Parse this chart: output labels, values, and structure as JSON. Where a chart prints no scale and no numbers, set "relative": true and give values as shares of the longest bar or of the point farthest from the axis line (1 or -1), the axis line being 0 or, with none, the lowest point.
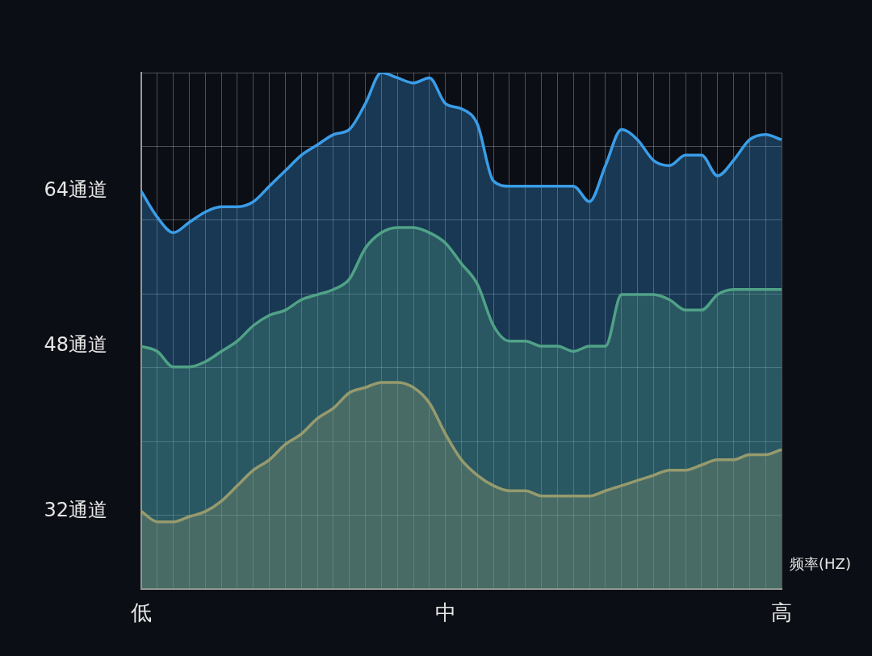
{
  "chart_data": {
    "type": "area",
    "relative": true,
    "xlabel": "频率(HZ)",
    "grid": true,
    "legend": false,
    "categories": [
      "低",
      null,
      null,
      null,
      null,
      null,
      null,
      null,
      null,
      null,
      null,
      null,
      null,
      null,
      null,
      null,
      null,
      null,
      null,
      "中",
      null,
      null,
      null,
      null,
      null,
      null,
      null,
      null,
      null,
      null,
      null,
      null,
      null,
      null,
      null,
      null,
      null,
      null,
      null,
      null,
      "高"
    ],
    "series": [
      {
        "name": "64通道",
        "color": "#3a9de8",
        "values": [
          0.77,
          0.72,
          0.69,
          0.71,
          0.73,
          0.74,
          0.74,
          0.75,
          0.78,
          0.81,
          0.84,
          0.86,
          0.88,
          0.89,
          0.94,
          1.0,
          0.99,
          0.98,
          0.99,
          0.94,
          0.93,
          0.9,
          0.79,
          0.78,
          0.78,
          0.78,
          0.78,
          0.78,
          0.75,
          0.82,
          0.89,
          0.87,
          0.83,
          0.82,
          0.84,
          0.84,
          0.8,
          0.83,
          0.87,
          0.88,
          0.87
        ]
      },
      {
        "name": "48通道",
        "color": "#5aa55e",
        "values": [
          0.47,
          0.46,
          0.43,
          0.43,
          0.44,
          0.46,
          0.48,
          0.51,
          0.53,
          0.54,
          0.56,
          0.57,
          0.58,
          0.6,
          0.66,
          0.69,
          0.7,
          0.7,
          0.69,
          0.67,
          0.63,
          0.59,
          0.51,
          0.48,
          0.48,
          0.47,
          0.47,
          0.46,
          0.47,
          0.47,
          0.57,
          0.57,
          0.57,
          0.56,
          0.54,
          0.54,
          0.57,
          0.58,
          0.58,
          0.58,
          0.58
        ]
      },
      {
        "name": "32通道",
        "color": "#e8952a",
        "values": [
          0.15,
          0.13,
          0.13,
          0.14,
          0.15,
          0.17,
          0.2,
          0.23,
          0.25,
          0.28,
          0.3,
          0.33,
          0.35,
          0.38,
          0.39,
          0.4,
          0.4,
          0.39,
          0.36,
          0.3,
          0.25,
          0.22,
          0.2,
          0.19,
          0.19,
          0.18,
          0.18,
          0.18,
          0.18,
          0.19,
          0.2,
          0.21,
          0.22,
          0.23,
          0.23,
          0.24,
          0.25,
          0.25,
          0.26,
          0.26,
          0.27
        ]
      }
    ]
  }
}
